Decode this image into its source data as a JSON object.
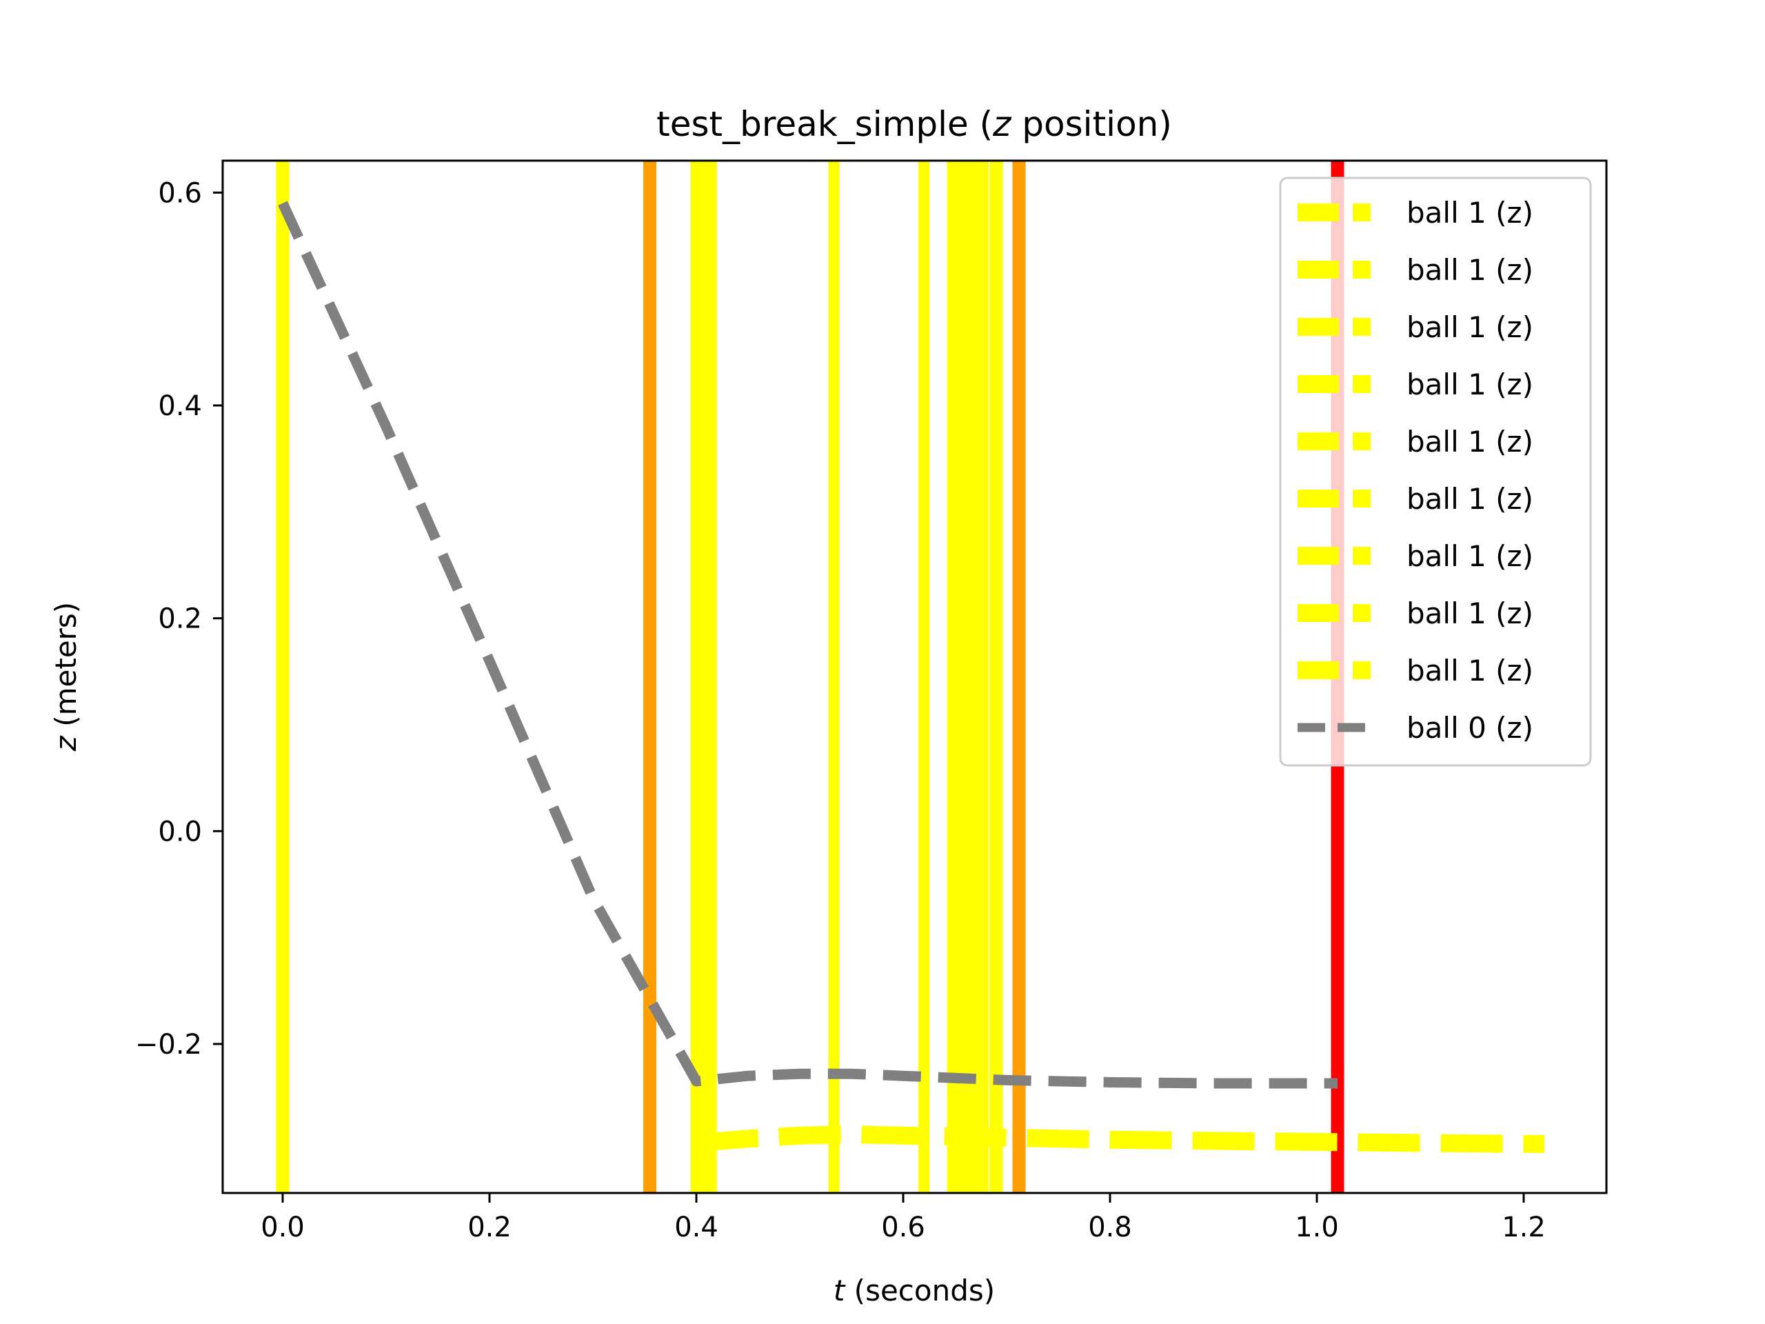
{
  "chart_data": {
    "type": "line",
    "title": "test_break_simple (z position)",
    "title_parts": [
      "test_break_simple (",
      "z",
      " position)"
    ],
    "xlabel": "t (seconds)",
    "xlabel_parts": [
      "t",
      " (seconds)"
    ],
    "ylabel": "z (meters)",
    "ylabel_parts": [
      "z",
      " (meters)"
    ],
    "xlim": [
      -0.058,
      1.28
    ],
    "ylim": [
      -0.34,
      0.63
    ],
    "x_ticks": [
      0.0,
      0.2,
      0.4,
      0.6,
      0.8,
      1.0,
      1.2
    ],
    "x_tick_labels": [
      "0.0",
      "0.2",
      "0.4",
      "0.6",
      "0.8",
      "1.0",
      "1.2"
    ],
    "y_ticks": [
      -0.2,
      0.0,
      0.2,
      0.4,
      0.6
    ],
    "y_tick_labels": [
      "−0.2",
      "0.0",
      "0.2",
      "0.4",
      "0.6"
    ],
    "grid": false,
    "legend_position": "top-right",
    "legend_entries": [
      "ball 1 (z)",
      "ball 1 (z)",
      "ball 1 (z)",
      "ball 1 (z)",
      "ball 1 (z)",
      "ball 1 (z)",
      "ball 1 (z)",
      "ball 1 (z)",
      "ball 1 (z)",
      "ball 0 (z)"
    ],
    "vertical_lines": [
      {
        "x": 0.0,
        "color": "#ffff00",
        "weight": "medium"
      },
      {
        "x": 0.355,
        "color": "#ff9e00",
        "weight": "medium"
      },
      {
        "x": 0.407,
        "color": "#ffff00",
        "weight": "heavy"
      },
      {
        "x": 0.533,
        "color": "#ffff00",
        "weight": "light"
      },
      {
        "x": 0.62,
        "color": "#ffff00",
        "weight": "light"
      },
      {
        "x": 0.655,
        "color": "#ffff00",
        "weight": "heavy"
      },
      {
        "x": 0.67,
        "color": "#ffff00",
        "weight": "heavy"
      },
      {
        "x": 0.69,
        "color": "#ffff00",
        "weight": "medium"
      },
      {
        "x": 0.712,
        "color": "#ff9e00",
        "weight": "medium"
      },
      {
        "x": 1.02,
        "color": "#ff0000",
        "weight": "medium"
      }
    ],
    "series": [
      {
        "name": "ball 1 (z)",
        "color": "#ffff00",
        "style": "dashed-thick",
        "x": [
          0.4,
          0.45,
          0.5,
          0.55,
          0.6,
          0.7,
          0.8,
          0.9,
          1.0,
          1.1,
          1.22
        ],
        "y": [
          -0.293,
          -0.289,
          -0.286,
          -0.285,
          -0.286,
          -0.288,
          -0.29,
          -0.291,
          -0.292,
          -0.293,
          -0.294
        ]
      },
      {
        "name": "ball 0 (z)",
        "color": "#808080",
        "style": "dashed",
        "x": [
          0.0,
          0.1,
          0.2,
          0.3,
          0.4,
          0.45,
          0.5,
          0.55,
          0.6,
          0.7,
          0.8,
          0.9,
          1.0,
          1.02
        ],
        "y": [
          0.59,
          0.38,
          0.16,
          -0.063,
          -0.235,
          -0.23,
          -0.228,
          -0.228,
          -0.23,
          -0.234,
          -0.236,
          -0.237,
          -0.237,
          -0.237
        ]
      }
    ],
    "legend_style": {
      "ball 1 (z)": {
        "color": "#ffff00"
      },
      "ball 0 (z)": {
        "color": "#808080"
      }
    }
  }
}
